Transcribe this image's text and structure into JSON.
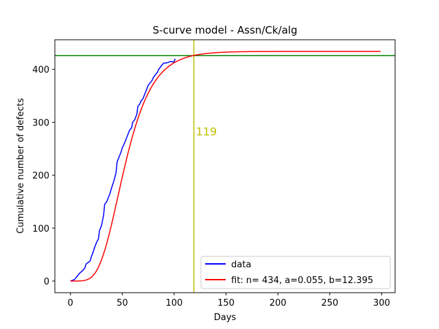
{
  "chart_data": {
    "type": "line",
    "title": "S-curve model - Assn/Ck/alg",
    "xlabel": "Days",
    "ylabel": "Cumulative number of defects",
    "xlim": [
      -15,
      313
    ],
    "ylim": [
      -22,
      456
    ],
    "x_ticks": [
      0,
      50,
      100,
      150,
      200,
      250,
      300
    ],
    "y_ticks": [
      0,
      100,
      200,
      300,
      400
    ],
    "x_tick_labels": [
      "0",
      "50",
      "100",
      "150",
      "200",
      "250",
      "300"
    ],
    "y_tick_labels": [
      "0",
      "100",
      "200",
      "300",
      "400"
    ],
    "grid": false,
    "legend_position": "lower-right",
    "series": [
      {
        "name": "data",
        "color": "#0000ff",
        "x": [
          0,
          3,
          4,
          6,
          9,
          12,
          14,
          15,
          17,
          19,
          20,
          22,
          23,
          25,
          27,
          28,
          30,
          32,
          33,
          35,
          36,
          38,
          40,
          42,
          44,
          45,
          47,
          48,
          49,
          50,
          52,
          54,
          55,
          57,
          59,
          60,
          62,
          64,
          65,
          67,
          68,
          70,
          72,
          74,
          75,
          77,
          79,
          80,
          82,
          84,
          85,
          87,
          89,
          90,
          92,
          94,
          95,
          97,
          99,
          100,
          101
        ],
        "y": [
          0,
          2,
          3,
          8,
          15,
          20,
          25,
          32,
          35,
          38,
          45,
          55,
          62,
          72,
          80,
          95,
          105,
          125,
          145,
          150,
          155,
          165,
          178,
          190,
          205,
          225,
          235,
          240,
          245,
          252,
          260,
          270,
          275,
          285,
          290,
          300,
          305,
          315,
          330,
          335,
          340,
          345,
          355,
          365,
          370,
          375,
          380,
          385,
          390,
          395,
          400,
          405,
          410,
          412,
          412,
          413,
          414,
          415,
          414,
          415,
          420
        ]
      },
      {
        "name": "fit: n=  434, a=0.055, b=12.395",
        "color": "#ff0000",
        "model": {
          "n": 434,
          "a": 0.055,
          "b": 12.395
        },
        "x_range": [
          0,
          299
        ]
      }
    ],
    "hline": {
      "y": 426,
      "color": "#008000"
    },
    "vline": {
      "x": 119,
      "color": "#bfbf00"
    },
    "annotations": [
      {
        "text": "119",
        "x": 121,
        "y": 275,
        "color": "#bfbf00"
      }
    ]
  }
}
